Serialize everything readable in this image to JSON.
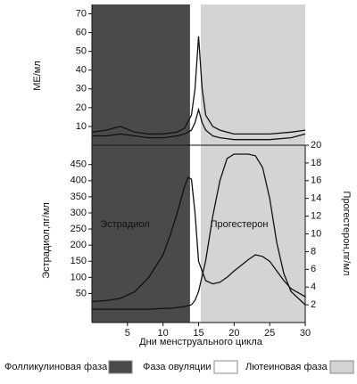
{
  "chart_data": [
    {
      "type": "line",
      "y_label": "МЕ/мл",
      "phases": [
        {
          "name": "Фолликулиновая фаза",
          "color": "#4a4a4a",
          "start": 0,
          "end": 13.8
        },
        {
          "name": "Фаза овуляции",
          "color": "#ffffff",
          "start": 13.8,
          "end": 15.3
        },
        {
          "name": "Лютеиновая фаза",
          "color": "#d4d4d4",
          "start": 15.3,
          "end": 30
        }
      ],
      "x": [
        0,
        2,
        4,
        6,
        8,
        10,
        12,
        13,
        14,
        14.5,
        15,
        15.5,
        16,
        17,
        18,
        20,
        22,
        25,
        28,
        30
      ],
      "series": [
        {
          "color": "#111111",
          "values": [
            7,
            8,
            10,
            7,
            6,
            6,
            7,
            9,
            16,
            30,
            58,
            30,
            16,
            10,
            8,
            6,
            6,
            6,
            7,
            8
          ]
        },
        {
          "color": "#111111",
          "values": [
            5,
            5,
            6,
            5,
            4,
            4,
            5,
            6,
            8,
            12,
            19,
            12,
            8,
            5,
            4,
            3,
            3,
            3,
            4,
            6
          ]
        }
      ],
      "xlim": [
        0,
        30
      ],
      "ylim": [
        0,
        75
      ],
      "yticks": [
        10,
        20,
        30,
        40,
        50,
        60,
        70
      ]
    },
    {
      "type": "line",
      "x_label": "Дни менструального цикла",
      "y_label": "Эстрадиол,пг/мл",
      "y2_label": "Прогестерон,пг/мл",
      "x": [
        0,
        2,
        4,
        6,
        8,
        10,
        11,
        12,
        13,
        13.5,
        14,
        14.5,
        15,
        16,
        17,
        18,
        19,
        20,
        22,
        23,
        24,
        25,
        26,
        27,
        28,
        30
      ],
      "series": [
        {
          "name": "Эстрадиол",
          "color": "#111111",
          "values": [
            25,
            28,
            35,
            55,
            100,
            170,
            230,
            300,
            380,
            410,
            405,
            300,
            150,
            90,
            80,
            85,
            100,
            120,
            155,
            170,
            165,
            150,
            120,
            90,
            65,
            40
          ]
        },
        {
          "name": "Прогестерон",
          "color": "#111111",
          "axis": "y2",
          "values": [
            1.5,
            1.5,
            1.5,
            1.5,
            1.5,
            1.6,
            1.6,
            1.7,
            1.8,
            1.9,
            2,
            2.5,
            3.5,
            7,
            12,
            16,
            18.5,
            19,
            19,
            18.8,
            17.5,
            14,
            9,
            5.5,
            3.5,
            2
          ]
        }
      ],
      "xlim": [
        0,
        30
      ],
      "xticks": [
        5,
        10,
        15,
        20,
        25,
        30
      ],
      "ylim": [
        -40,
        510
      ],
      "yticks": [
        50,
        100,
        150,
        200,
        250,
        300,
        350,
        400,
        450
      ],
      "y2lim": [
        0,
        20
      ],
      "y2ticks": [
        2,
        4,
        6,
        8,
        10,
        12,
        14,
        16,
        18,
        20
      ]
    }
  ]
}
